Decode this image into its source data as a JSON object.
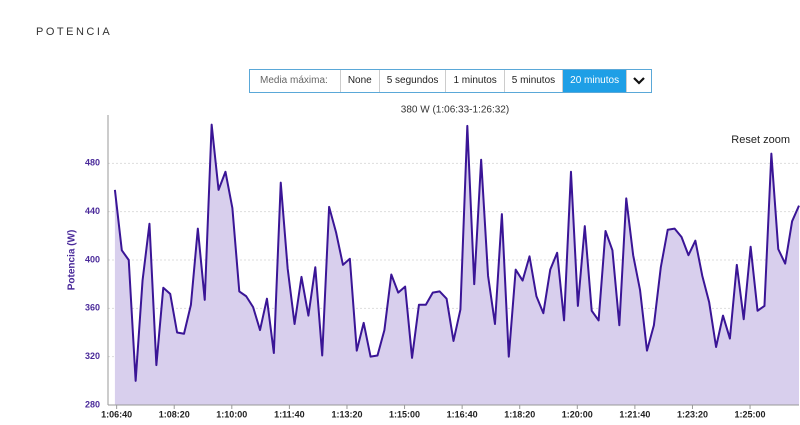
{
  "page_title": "POTENCIA",
  "controls": {
    "label": "Media máxima:",
    "options": [
      "None",
      "5 segundos",
      "1 minutos",
      "5 minutos",
      "20 minutos"
    ],
    "selected": 4,
    "reset": "Reset zoom"
  },
  "chart_data": {
    "type": "area",
    "subtitle": "380 W (1:06:33-1:26:32)",
    "y_label": "Potencia (W)",
    "line_color": "#3a1596",
    "fill_color": "#d8cfed",
    "x": [
      3997,
      4009,
      4021,
      4033,
      4045,
      4057,
      4069,
      4081,
      4093,
      4105,
      4117,
      4129,
      4141,
      4153,
      4165,
      4177,
      4189,
      4201,
      4213,
      4225,
      4237,
      4249,
      4261,
      4273,
      4285,
      4297,
      4309,
      4321,
      4333,
      4345,
      4357,
      4369,
      4381,
      4393,
      4405,
      4417,
      4429,
      4441,
      4453,
      4465,
      4477,
      4489,
      4501,
      4513,
      4525,
      4537,
      4549,
      4561,
      4573,
      4585,
      4597,
      4609,
      4621,
      4633,
      4645,
      4657,
      4669,
      4681,
      4693,
      4705,
      4717,
      4729,
      4741,
      4753,
      4765,
      4777,
      4789,
      4801,
      4813,
      4825,
      4837,
      4849,
      4861,
      4873,
      4885,
      4897,
      4909,
      4921,
      4933,
      4945,
      4957,
      4969,
      4981,
      4993,
      5005,
      5017,
      5029,
      5041,
      5053,
      5065,
      5077,
      5089,
      5101,
      5113,
      5125,
      5137,
      5149,
      5161,
      5173,
      5185
    ],
    "values": [
      458,
      408,
      400,
      300,
      383,
      430,
      313,
      377,
      372,
      340,
      339,
      363,
      426,
      367,
      512,
      458,
      473,
      443,
      374,
      370,
      361,
      342,
      368,
      323,
      464,
      393,
      347,
      386,
      354,
      394,
      321,
      444,
      423,
      396,
      401,
      325,
      348,
      320,
      321,
      342,
      388,
      373,
      378,
      319,
      363,
      363,
      373,
      374,
      368,
      333,
      359,
      511,
      380,
      483,
      387,
      347,
      438,
      320,
      392,
      383,
      403,
      370,
      356,
      392,
      406,
      350,
      473,
      362,
      428,
      358,
      350,
      424,
      408,
      346,
      451,
      404,
      375,
      325,
      346,
      394,
      425,
      426,
      419,
      404,
      416,
      387,
      365,
      328,
      354,
      335,
      396,
      351,
      411,
      358,
      362,
      488,
      409,
      397,
      432,
      445
    ],
    "xlim": [
      3985,
      5185
    ],
    "xticks": [
      {
        "value": 4000,
        "label": "1:06:40"
      },
      {
        "value": 4100,
        "label": "1:08:20"
      },
      {
        "value": 4200,
        "label": "1:10:00"
      },
      {
        "value": 4300,
        "label": "1:11:40"
      },
      {
        "value": 4400,
        "label": "1:13:20"
      },
      {
        "value": 4500,
        "label": "1:15:00"
      },
      {
        "value": 4600,
        "label": "1:16:40"
      },
      {
        "value": 4700,
        "label": "1:18:20"
      },
      {
        "value": 4800,
        "label": "1:20:00"
      },
      {
        "value": 4900,
        "label": "1:21:40"
      },
      {
        "value": 5000,
        "label": "1:23:20"
      },
      {
        "value": 5100,
        "label": "1:25:00"
      }
    ],
    "ylim": [
      280,
      520
    ],
    "yticks": [
      280,
      320,
      360,
      400,
      440,
      480
    ],
    "grid": true
  }
}
